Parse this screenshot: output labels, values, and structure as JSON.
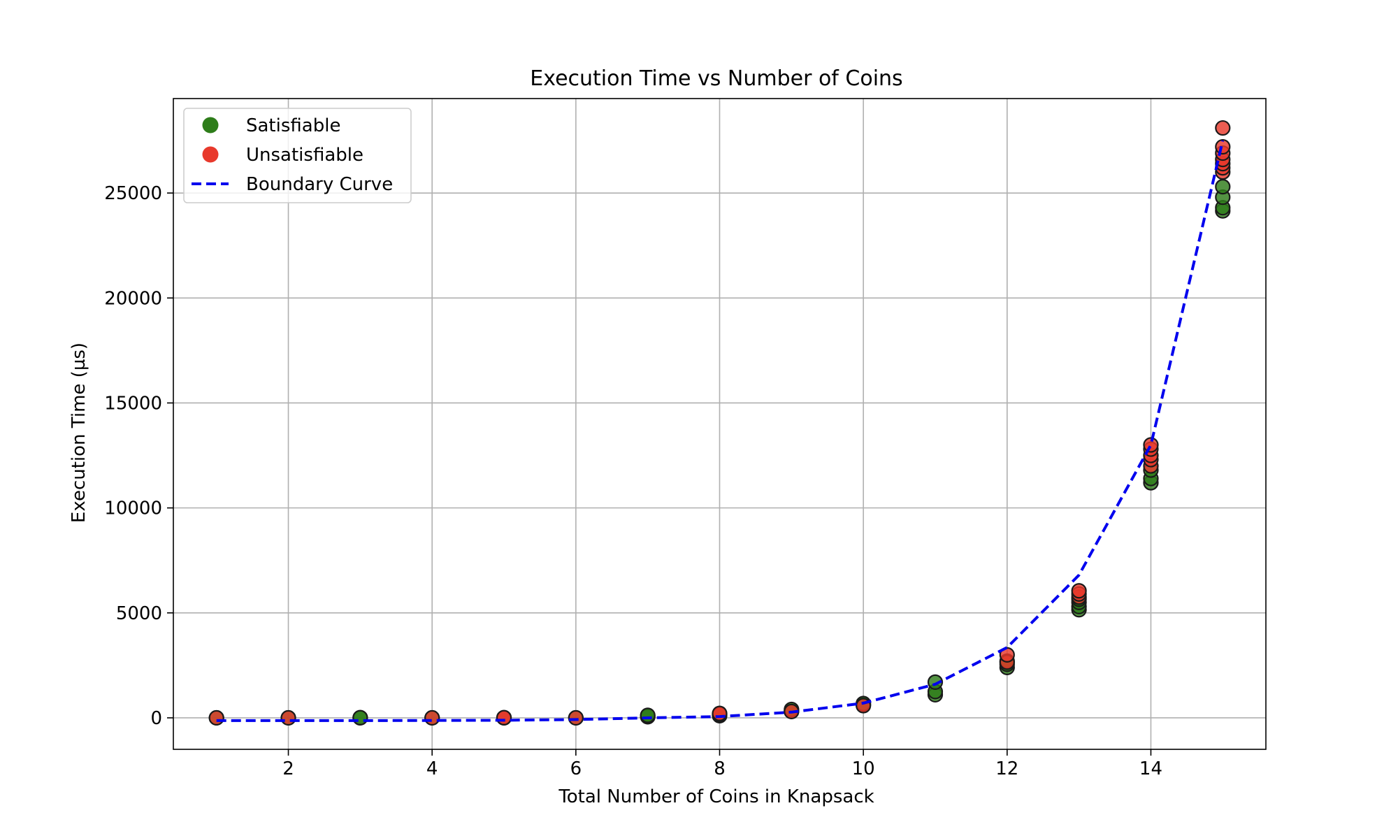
{
  "chart_data": {
    "type": "scatter",
    "title": "Execution Time vs Number of Coins",
    "xlabel": "Total Number of Coins in Knapsack",
    "ylabel": "Execution Time (µs)",
    "xlim": [
      0.4,
      15.6
    ],
    "ylim": [
      -1500,
      29500
    ],
    "xticks": [
      2,
      4,
      6,
      8,
      10,
      12,
      14
    ],
    "yticks": [
      0,
      5000,
      10000,
      15000,
      20000,
      25000
    ],
    "grid": true,
    "legend": {
      "position": "upper left",
      "entries": [
        {
          "label": "Satisfiable",
          "color": "#2e7d1a",
          "marker": "circle"
        },
        {
          "label": "Unsatisfiable",
          "color": "#e8392c",
          "marker": "circle"
        },
        {
          "label": "Boundary Curve",
          "color": "#0000ee",
          "marker": "dashed-line"
        }
      ]
    },
    "series": [
      {
        "name": "Satisfiable",
        "color": "#2e7d1a",
        "points": [
          [
            1,
            0
          ],
          [
            2,
            0
          ],
          [
            3,
            0
          ],
          [
            3,
            10
          ],
          [
            4,
            0
          ],
          [
            5,
            0
          ],
          [
            6,
            0
          ],
          [
            7,
            50
          ],
          [
            7,
            90
          ],
          [
            7,
            120
          ],
          [
            8,
            100
          ],
          [
            8,
            160
          ],
          [
            9,
            320
          ],
          [
            9,
            400
          ],
          [
            10,
            620
          ],
          [
            10,
            680
          ],
          [
            11,
            1100
          ],
          [
            11,
            1250
          ],
          [
            11,
            1700
          ],
          [
            12,
            2400
          ],
          [
            12,
            2550
          ],
          [
            12,
            2700
          ],
          [
            13,
            5150
          ],
          [
            13,
            5300
          ],
          [
            13,
            5500
          ],
          [
            13,
            5650
          ],
          [
            14,
            11200
          ],
          [
            14,
            11400
          ],
          [
            14,
            11800
          ],
          [
            15,
            24150
          ],
          [
            15,
            24300
          ],
          [
            15,
            24800
          ],
          [
            15,
            25300
          ]
        ]
      },
      {
        "name": "Unsatisfiable",
        "color": "#e8392c",
        "points": [
          [
            1,
            0
          ],
          [
            2,
            0
          ],
          [
            4,
            0
          ],
          [
            5,
            0
          ],
          [
            5,
            10
          ],
          [
            6,
            0
          ],
          [
            8,
            180
          ],
          [
            8,
            210
          ],
          [
            9,
            300
          ],
          [
            10,
            580
          ],
          [
            12,
            2650
          ],
          [
            12,
            3000
          ],
          [
            13,
            5750
          ],
          [
            13,
            5900
          ],
          [
            13,
            6050
          ],
          [
            14,
            12000
          ],
          [
            14,
            12300
          ],
          [
            14,
            12500
          ],
          [
            14,
            12800
          ],
          [
            14,
            13000
          ],
          [
            15,
            26000
          ],
          [
            15,
            26200
          ],
          [
            15,
            26400
          ],
          [
            15,
            26600
          ],
          [
            15,
            26900
          ],
          [
            15,
            27200
          ],
          [
            15,
            28100
          ]
        ]
      },
      {
        "name": "Boundary Curve",
        "color": "#0000ee",
        "style": "dashed",
        "points": [
          [
            1,
            -130
          ],
          [
            2,
            -130
          ],
          [
            3,
            -130
          ],
          [
            4,
            -125
          ],
          [
            5,
            -115
          ],
          [
            6,
            -80
          ],
          [
            7,
            0
          ],
          [
            8,
            60
          ],
          [
            9,
            270
          ],
          [
            10,
            700
          ],
          [
            11,
            1600
          ],
          [
            12,
            3350
          ],
          [
            13,
            6800
          ],
          [
            14,
            13000
          ],
          [
            15,
            27500
          ]
        ]
      }
    ]
  }
}
